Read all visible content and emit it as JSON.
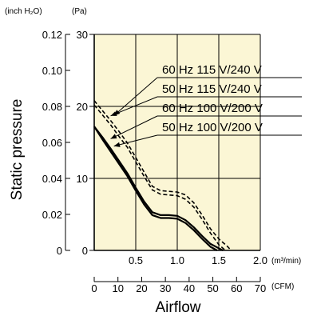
{
  "chart_data": {
    "type": "line",
    "xlabel": "Airflow",
    "ylabel": "Static pressure",
    "x_unit": "(m³/min)",
    "x2_unit": "(CFM)",
    "y_unit": "(Pa)",
    "y2_unit": "(inch H₂O)",
    "xlim": [
      0,
      2.0
    ],
    "ylim": [
      0,
      30
    ],
    "x_ticks": [
      "0.5",
      "1.0",
      "1.5",
      "2.0"
    ],
    "x_tick_values": [
      0.5,
      1.0,
      1.5,
      2.0
    ],
    "x2_ticks": [
      "0",
      "10",
      "20",
      "30",
      "40",
      "50",
      "60",
      "70"
    ],
    "x2_tick_values": [
      0,
      10,
      20,
      30,
      40,
      50,
      60,
      70
    ],
    "y_ticks": [
      "0",
      "10",
      "20",
      "30"
    ],
    "y_tick_values": [
      0,
      10,
      20,
      30
    ],
    "y2_ticks": [
      "0",
      "0.02",
      "0.04",
      "0.06",
      "0.08",
      "0.10",
      "0.12"
    ],
    "y2_tick_values": [
      0,
      0.02,
      0.04,
      0.06,
      0.08,
      0.1,
      0.12
    ],
    "grid": true,
    "background": "#fbf6d5",
    "series": [
      {
        "name": "60 Hz 115 V/240 V",
        "style": "dashed",
        "x": [
          0,
          0.1,
          0.2,
          0.3,
          0.4,
          0.5,
          0.6,
          0.7,
          0.8,
          0.9,
          1.0,
          1.1,
          1.2,
          1.3,
          1.4,
          1.5,
          1.6,
          1.65
        ],
        "y": [
          20.8,
          19.4,
          18.0,
          16.5,
          14.9,
          12.9,
          10.9,
          8.9,
          8.3,
          8.2,
          8.1,
          7.7,
          6.6,
          4.9,
          3.0,
          1.6,
          0.6,
          0
        ]
      },
      {
        "name": "50 Hz 115 V/240 V",
        "style": "dashed",
        "x": [
          0,
          0.1,
          0.2,
          0.3,
          0.4,
          0.5,
          0.6,
          0.7,
          0.8,
          0.9,
          1.0,
          1.1,
          1.2,
          1.3,
          1.4,
          1.5,
          1.58
        ],
        "y": [
          20.2,
          18.8,
          17.4,
          15.8,
          14.3,
          12.3,
          10.3,
          8.4,
          7.8,
          7.7,
          7.6,
          7.1,
          6.0,
          4.3,
          2.4,
          0.8,
          0
        ]
      },
      {
        "name": "60 Hz 100 V/200 V",
        "style": "solid",
        "x": [
          0,
          0.1,
          0.2,
          0.3,
          0.4,
          0.5,
          0.6,
          0.7,
          0.8,
          0.9,
          1.0,
          1.1,
          1.2,
          1.3,
          1.4,
          1.5,
          1.55
        ],
        "y": [
          17.2,
          15.7,
          14.1,
          12.4,
          10.7,
          8.7,
          6.8,
          5.3,
          4.9,
          4.9,
          4.8,
          4.2,
          3.2,
          2.0,
          0.9,
          0.3,
          0
        ]
      },
      {
        "name": "50 Hz 100 V/200 V",
        "style": "solid",
        "x": [
          0,
          0.1,
          0.2,
          0.3,
          0.4,
          0.5,
          0.6,
          0.7,
          0.8,
          0.9,
          1.0,
          1.1,
          1.2,
          1.3,
          1.4,
          1.48
        ],
        "y": [
          17.2,
          15.4,
          13.7,
          12.0,
          10.3,
          8.3,
          6.4,
          4.9,
          4.5,
          4.5,
          4.4,
          3.8,
          2.8,
          1.6,
          0.5,
          0
        ]
      }
    ],
    "legend_position": "right"
  }
}
